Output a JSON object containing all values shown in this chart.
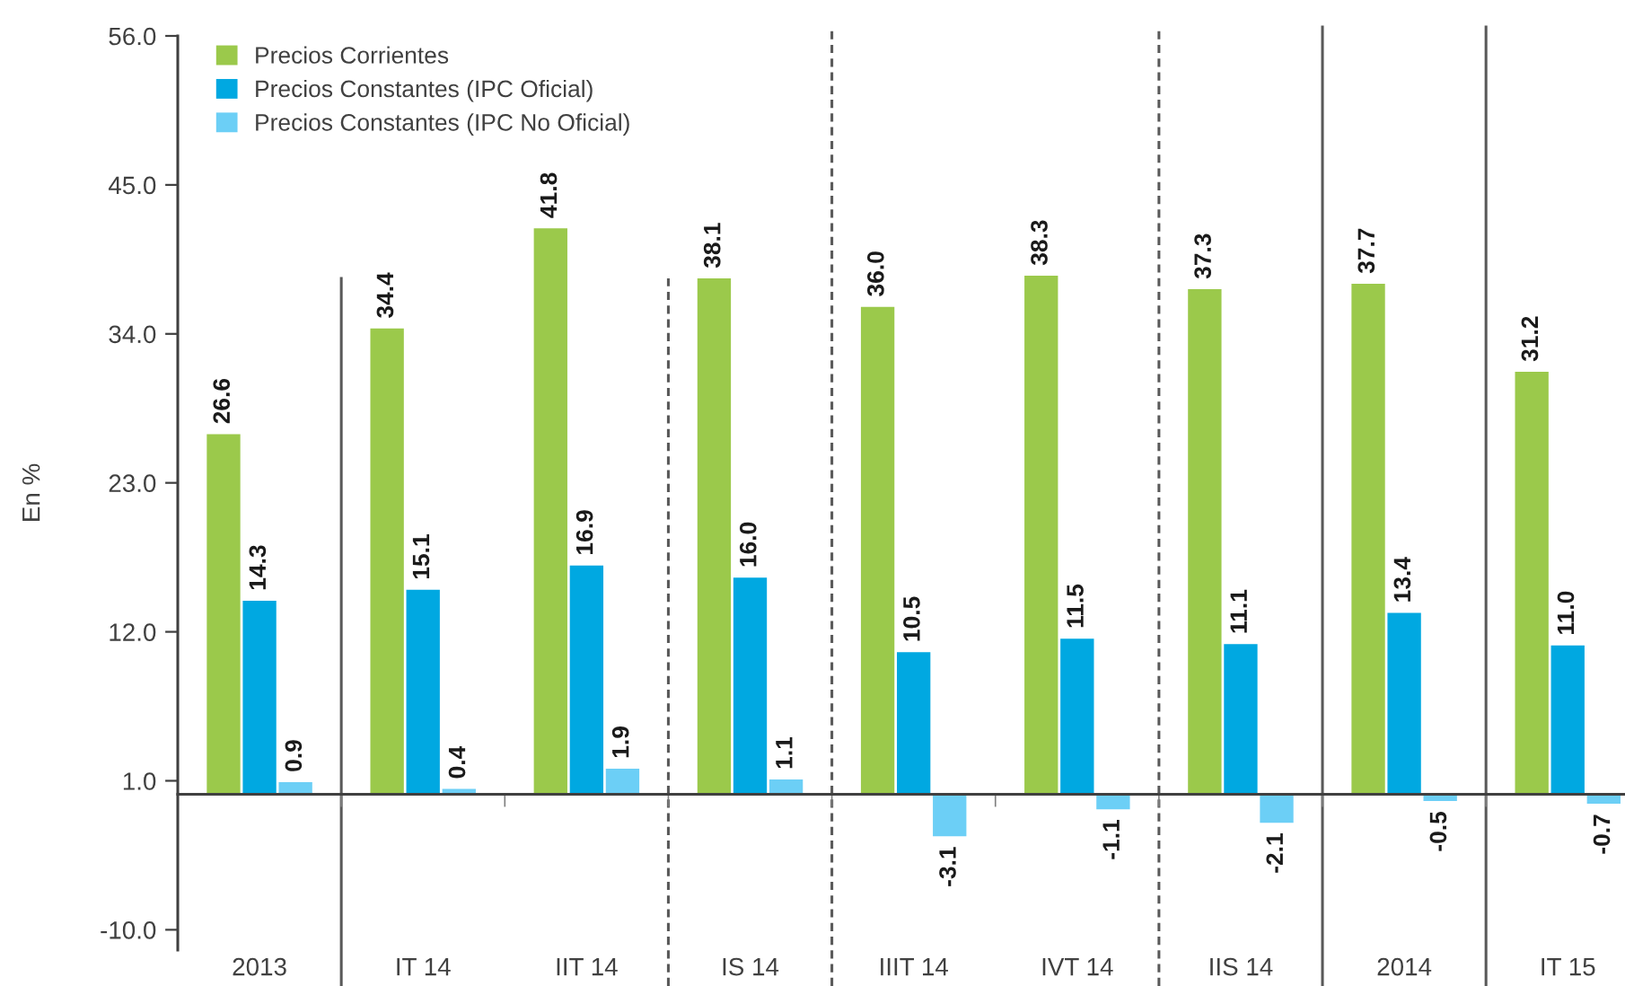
{
  "chart_data": {
    "type": "bar",
    "ylabel": "En %",
    "categories": [
      "2013",
      "IT 14",
      "IIT 14",
      "IS 14",
      "IIIT 14",
      "IVT 14",
      "IIS 14",
      "2014",
      "IT 15"
    ],
    "series": [
      {
        "name": "Precios Corrientes",
        "color": "#9bc94b",
        "values": [
          26.6,
          34.4,
          41.8,
          38.1,
          36.0,
          38.3,
          37.3,
          37.7,
          31.2
        ],
        "value_labels": [
          "26.6",
          "34.4",
          "41.8",
          "38.1",
          "36.0",
          "38.3",
          "37.3",
          "37.7",
          "31.2"
        ]
      },
      {
        "name": "Precios Constantes (IPC Oficial)",
        "color": "#00a8e1",
        "values": [
          14.3,
          15.1,
          16.9,
          16.0,
          10.5,
          11.5,
          11.1,
          13.4,
          11.0
        ],
        "value_labels": [
          "14.3",
          "15.1",
          "16.9",
          "16.0",
          "10.5",
          "11.5",
          "11.1",
          "13.4",
          "11.0"
        ]
      },
      {
        "name": "Precios Constantes (IPC No Oficial)",
        "color": "#6ccff6",
        "values": [
          0.9,
          0.4,
          1.9,
          1.1,
          -3.1,
          -1.1,
          -2.1,
          -0.5,
          -0.7
        ],
        "value_labels": [
          "0.9",
          "0.4",
          "1.9",
          "1.1",
          "-3.1",
          "-1.1",
          "-2.1",
          "-0.5",
          "-0.7"
        ]
      }
    ],
    "ylim": [
      -11.5,
      56
    ],
    "yticks": [
      {
        "value": -10,
        "label": "-10.0"
      },
      {
        "value": 1,
        "label": "1.0"
      },
      {
        "value": 12,
        "label": "12.0"
      },
      {
        "value": 23,
        "label": "23.0"
      },
      {
        "value": 34,
        "label": "34.0"
      },
      {
        "value": 45,
        "label": "45.0"
      },
      {
        "value": 56,
        "label": "56.0"
      }
    ],
    "legend": "top left",
    "grid": false
  }
}
